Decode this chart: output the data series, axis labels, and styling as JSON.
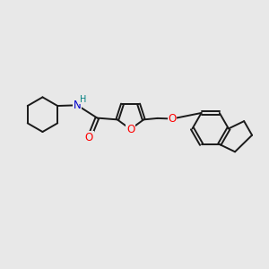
{
  "bg_color": "#e8e8e8",
  "bond_color": "#1a1a1a",
  "bond_width": 1.4,
  "atom_colors": {
    "O": "#ff0000",
    "N": "#0000cd",
    "H": "#008080",
    "C": "#1a1a1a"
  },
  "font_size": 8.5,
  "xlim": [
    0,
    10
  ],
  "ylim": [
    0,
    10
  ]
}
